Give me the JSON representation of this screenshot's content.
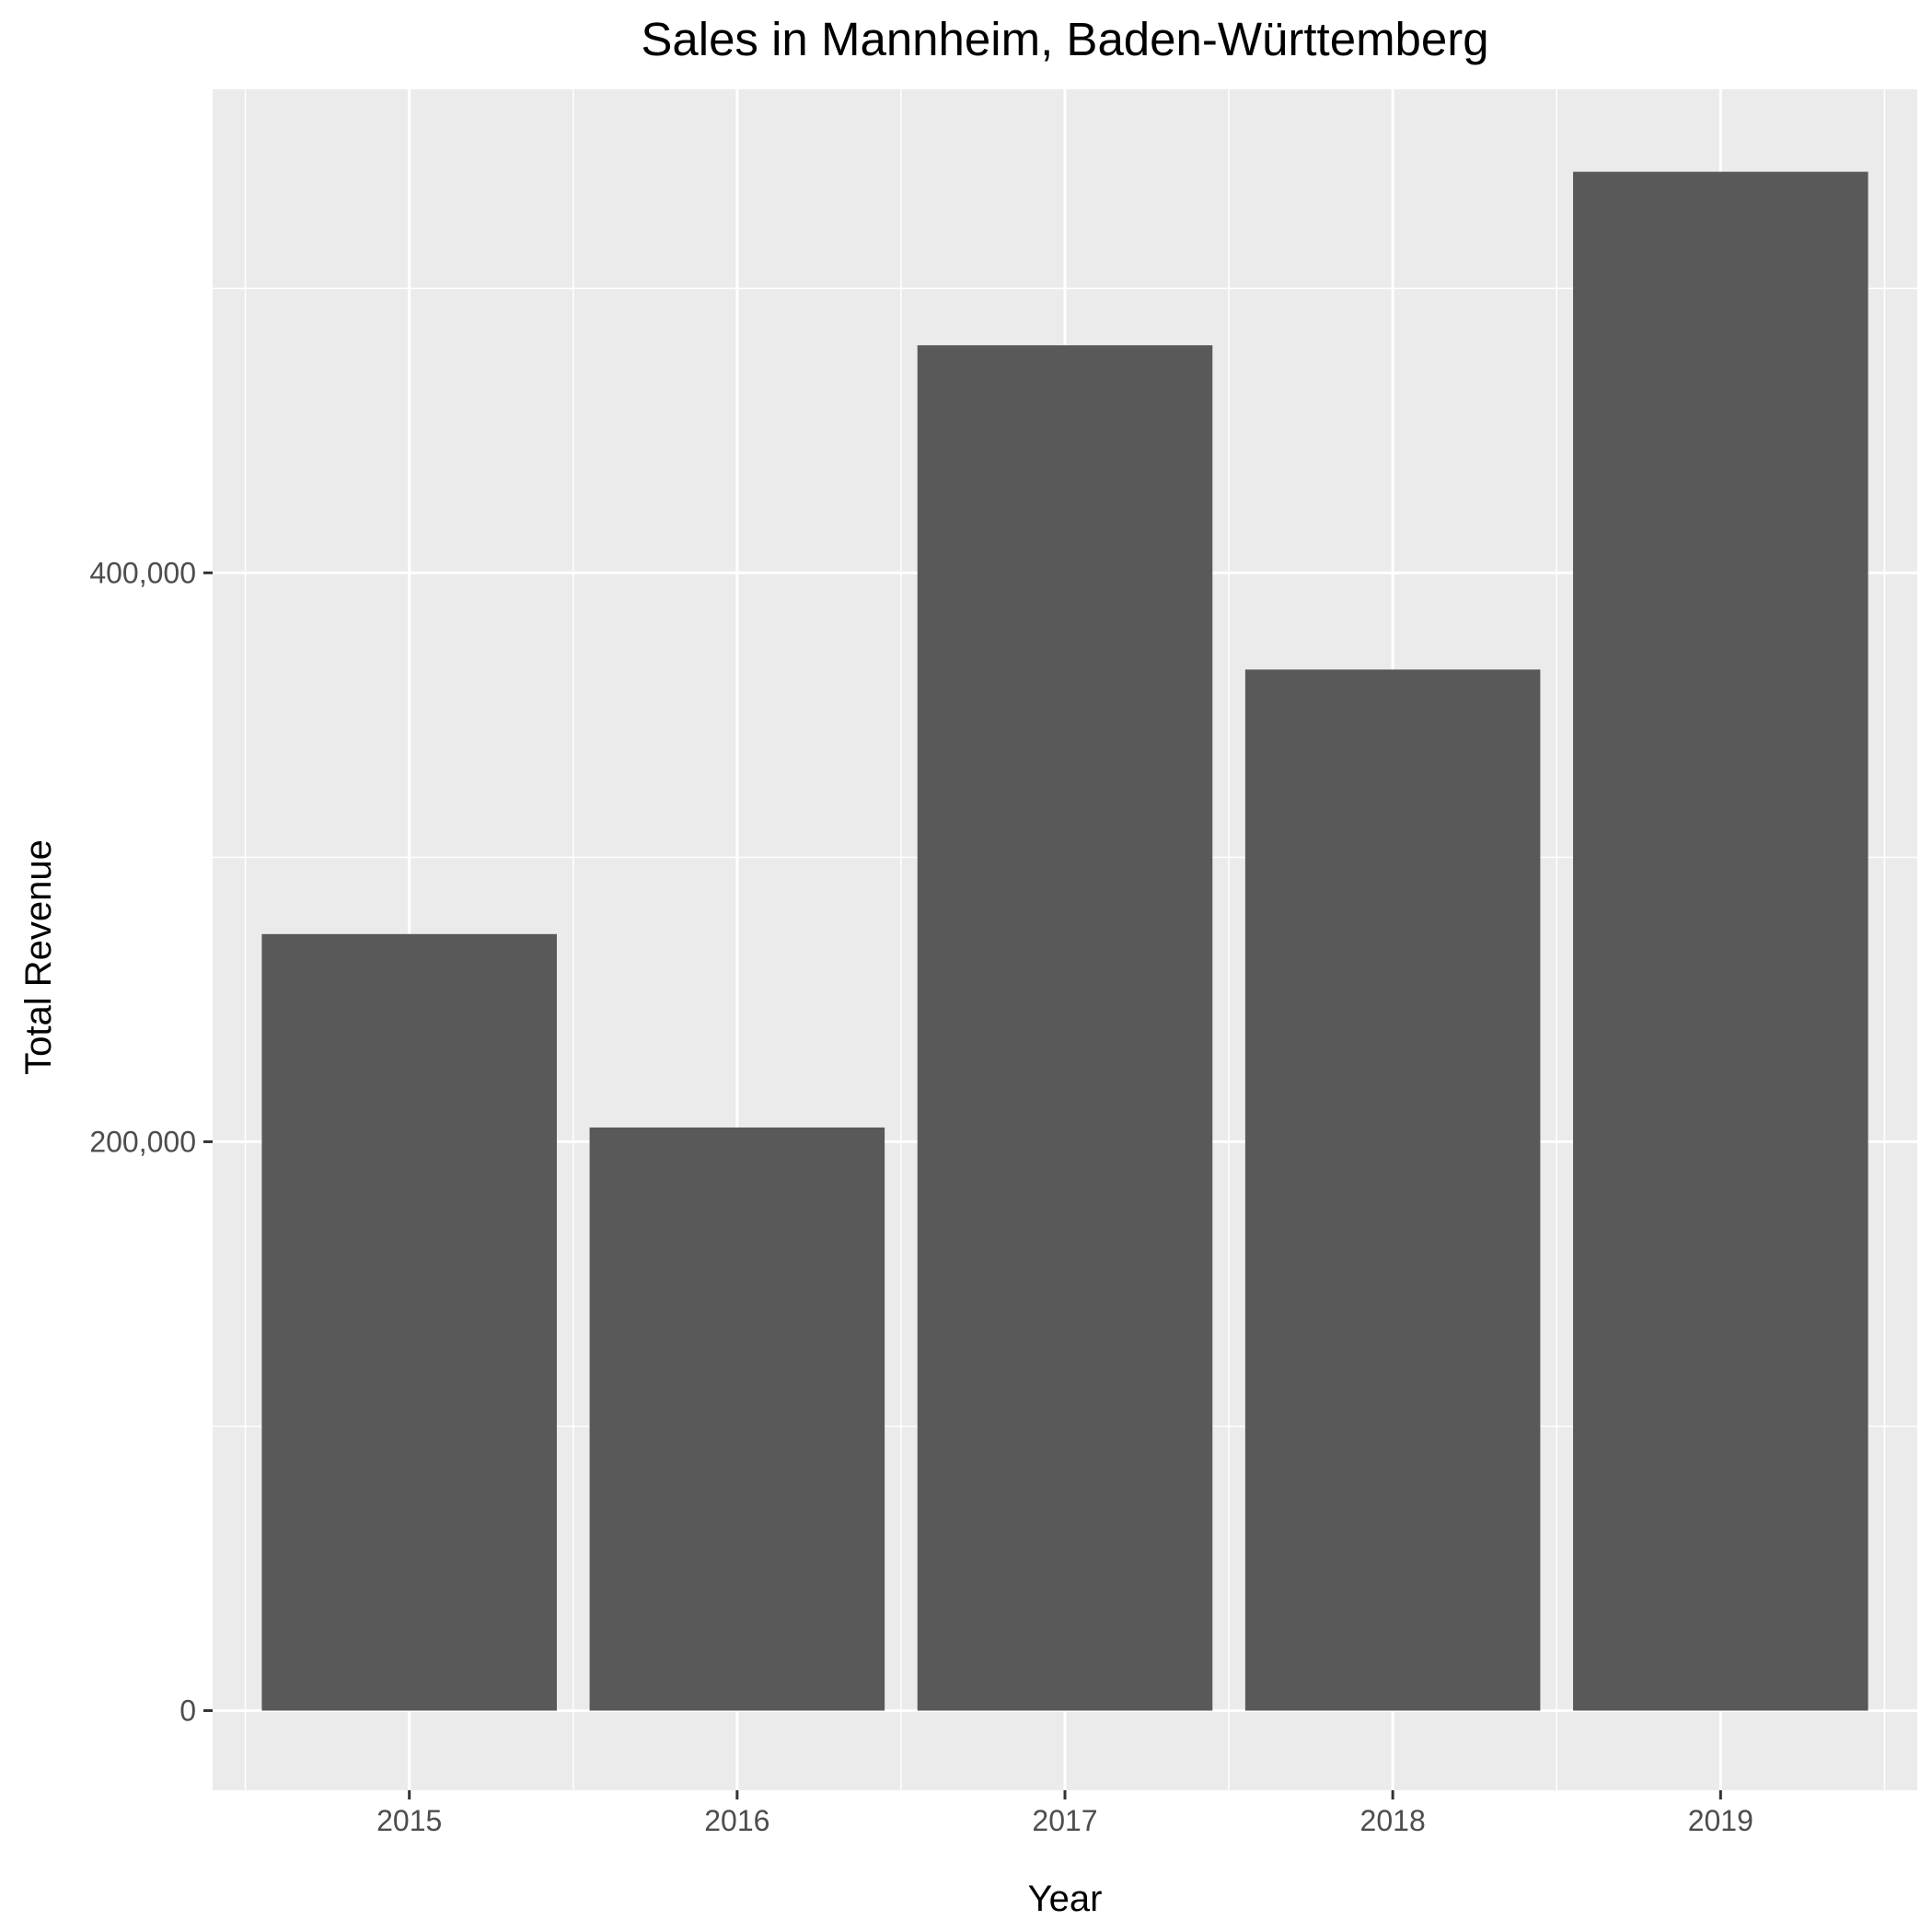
{
  "chart_data": {
    "type": "bar",
    "title": "Sales in Mannheim, Baden-Württemberg",
    "xlabel": "Year",
    "ylabel": "Total Revenue",
    "categories": [
      "2015",
      "2016",
      "2017",
      "2018",
      "2019"
    ],
    "values": [
      273000,
      205000,
      480000,
      366000,
      541000
    ],
    "ylim": [
      -28000,
      570000
    ],
    "yticks": [
      0,
      200000,
      400000
    ],
    "ytick_labels": [
      "0",
      "200,000",
      "400,000"
    ],
    "y_minor_breaks": [
      100000,
      300000,
      500000
    ],
    "grid": true,
    "legend": "none",
    "colors": {
      "bar": "#595959",
      "panel": "#ebebeb",
      "grid": "#ffffff",
      "tick_text": "#4d4d4d",
      "tick_mark": "#333333"
    }
  }
}
